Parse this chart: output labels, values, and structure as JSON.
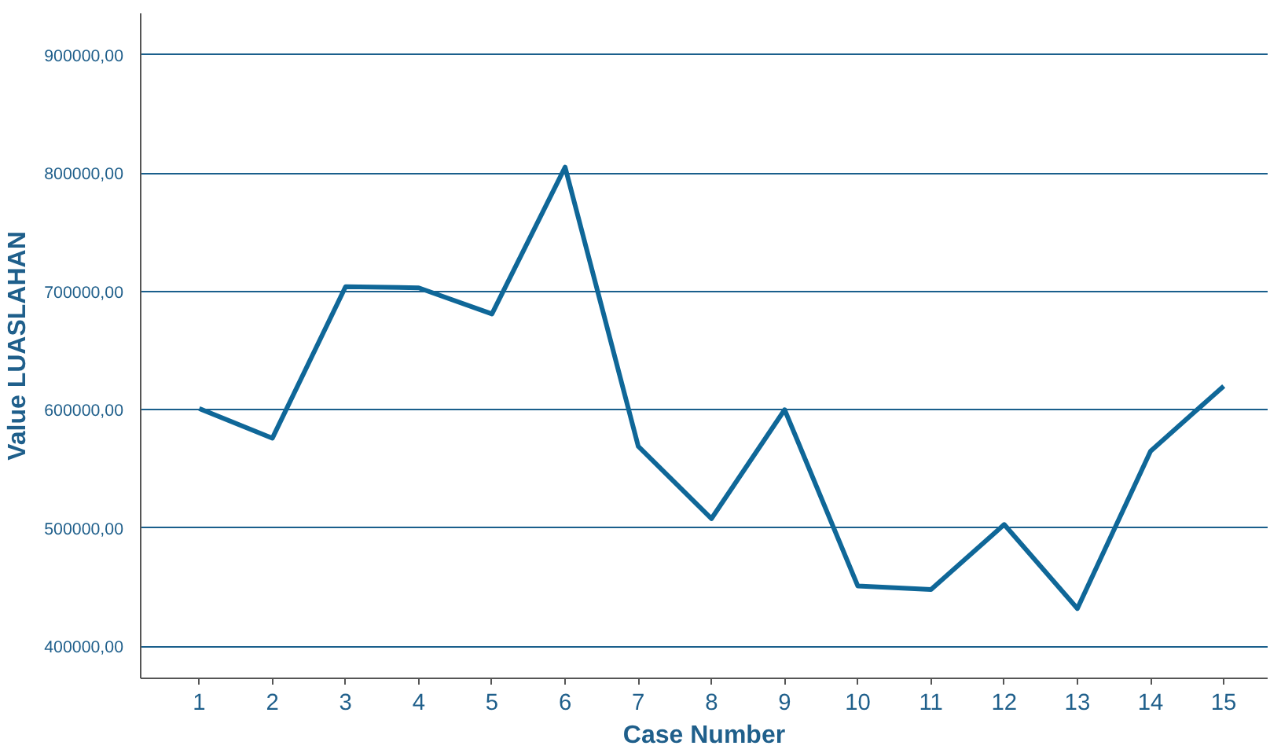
{
  "chart_data": {
    "type": "line",
    "xlabel": "Case Number",
    "ylabel": "Value LUASLAHAN",
    "x": [
      1,
      2,
      3,
      4,
      5,
      6,
      7,
      8,
      9,
      10,
      11,
      12,
      13,
      14,
      15
    ],
    "series": [
      {
        "color": "#0f6798",
        "values": [
          601000,
          576000,
          704000,
          703000,
          681000,
          805000,
          569000,
          508000,
          600000,
          451000,
          448000,
          503000,
          432000,
          565000,
          620000
        ]
      }
    ],
    "xlim": [
      0.2,
      15.6
    ],
    "xticks": [
      1,
      2,
      3,
      4,
      5,
      6,
      7,
      8,
      9,
      10,
      11,
      12,
      13,
      14,
      15
    ],
    "ylim": [
      373000,
      935000
    ],
    "yticks": [
      {
        "value": 400000,
        "label": "400000,00"
      },
      {
        "value": 500000,
        "label": "500000,00"
      },
      {
        "value": 600000,
        "label": "600000,00"
      },
      {
        "value": 700000,
        "label": "700000,00"
      },
      {
        "value": 800000,
        "label": "800000,00"
      },
      {
        "value": 900000,
        "label": "900000,00"
      }
    ],
    "grid": "y",
    "marker": "none",
    "line_style": "solid"
  }
}
